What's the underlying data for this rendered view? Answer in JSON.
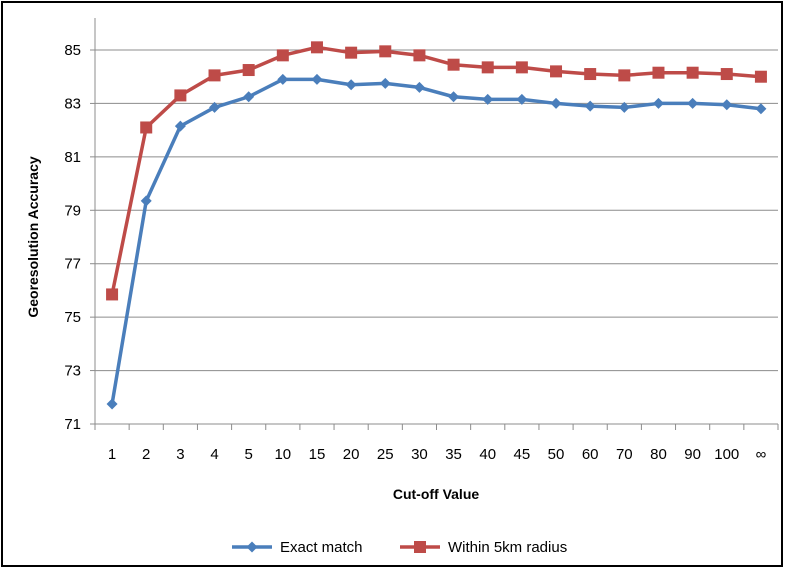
{
  "chart_data": {
    "type": "line",
    "title": "",
    "xlabel": "Cut-off Value",
    "ylabel": "Georesolution Accuracy",
    "categories": [
      "1",
      "2",
      "3",
      "4",
      "5",
      "10",
      "15",
      "20",
      "25",
      "30",
      "35",
      "40",
      "45",
      "50",
      "60",
      "70",
      "80",
      "90",
      "100",
      "∞"
    ],
    "ylim": [
      71,
      86
    ],
    "yticks": [
      71,
      73,
      75,
      77,
      79,
      81,
      83,
      85
    ],
    "grid": "horizontal",
    "legend": "bottom",
    "series": [
      {
        "name": "Exact match",
        "color": "#4a7ebb",
        "marker": "diamond",
        "values": [
          71.75,
          79.35,
          82.15,
          82.85,
          83.25,
          83.9,
          83.9,
          83.7,
          83.75,
          83.6,
          83.25,
          83.15,
          83.15,
          83.0,
          82.9,
          82.85,
          83.0,
          83.0,
          82.95,
          82.8
        ]
      },
      {
        "name": "Within 5km radius",
        "color": "#be4b48",
        "marker": "square",
        "values": [
          75.85,
          82.1,
          83.3,
          84.05,
          84.25,
          84.8,
          85.1,
          84.9,
          84.95,
          84.8,
          84.45,
          84.35,
          84.35,
          84.2,
          84.1,
          84.05,
          84.15,
          84.15,
          84.1,
          84.0
        ]
      }
    ]
  }
}
